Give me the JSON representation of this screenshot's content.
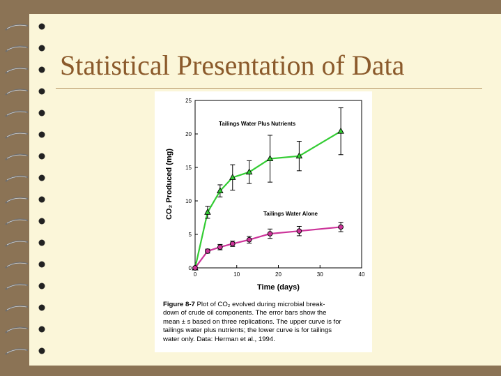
{
  "slide": {
    "title": "Statistical Presentation of Data",
    "background_color": "#8b7355",
    "slide_color": "#fbf6d9",
    "title_color": "#8b5a2b"
  },
  "chart_data": {
    "type": "line",
    "xlabel": "Time (days)",
    "ylabel": "CO₂ Produced (mg)",
    "xlim": [
      0,
      40
    ],
    "ylim": [
      0,
      25
    ],
    "xticks": [
      0,
      10,
      20,
      30,
      40
    ],
    "yticks": [
      0,
      5,
      10,
      15,
      20,
      25
    ],
    "grid": false,
    "series": [
      {
        "name": "Tailings Water Plus Nutrients",
        "color": "#33cc33",
        "marker": "triangle",
        "x": [
          0,
          3,
          6,
          9,
          13,
          18,
          25,
          35
        ],
        "y": [
          0,
          8.3,
          11.5,
          13.5,
          14.3,
          16.3,
          16.7,
          20.4
        ],
        "err": [
          0,
          0.9,
          0.9,
          1.9,
          1.7,
          3.5,
          2.2,
          3.5
        ]
      },
      {
        "name": "Tailings Water Alone",
        "color": "#cc3399",
        "marker": "circle",
        "x": [
          0,
          3,
          6,
          9,
          13,
          18,
          25,
          35
        ],
        "y": [
          0,
          2.5,
          3.1,
          3.6,
          4.2,
          5.1,
          5.5,
          6.1
        ],
        "err": [
          0,
          0.3,
          0.4,
          0.4,
          0.5,
          0.7,
          0.7,
          0.7
        ]
      }
    ]
  },
  "caption": {
    "label": "Figure 8-7",
    "lines": [
      "Plot of CO₂ evolved during microbial break-",
      "down of crude oil components. The error bars show the",
      "mean ± s based on three replications. The upper curve is for",
      "tailings water plus nutrients; the lower curve is for tailings",
      "water only. Data: Herman et al., 1994."
    ]
  }
}
